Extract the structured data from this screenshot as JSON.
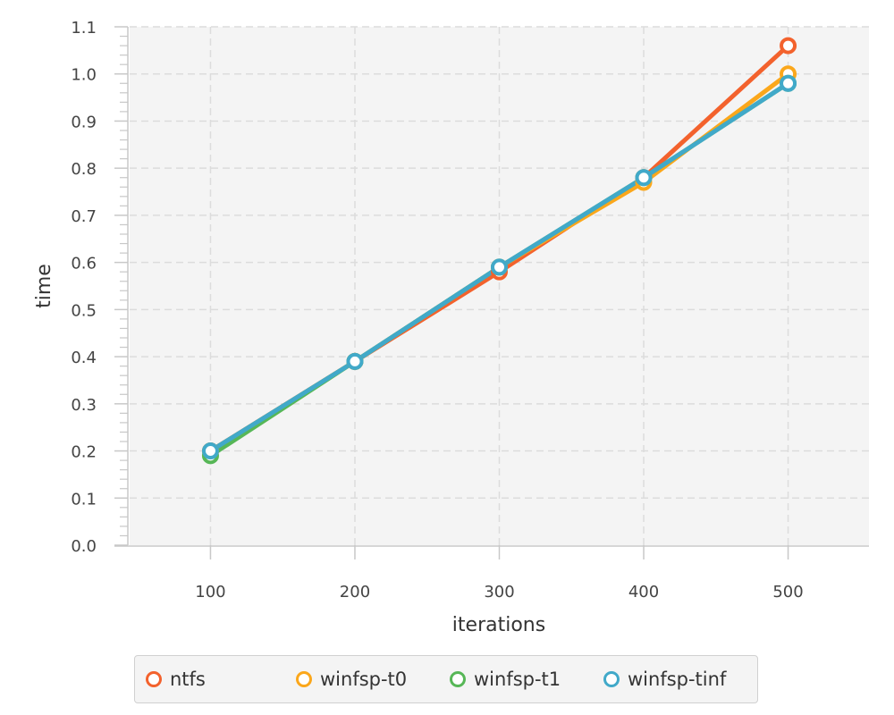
{
  "chart_data": {
    "type": "line",
    "title": "",
    "xlabel": "iterations",
    "ylabel": "time",
    "x": [
      100,
      200,
      300,
      400,
      500
    ],
    "xlim": [
      44,
      556
    ],
    "ylim": [
      0.0,
      1.1
    ],
    "xticks": [
      "100",
      "200",
      "300",
      "400",
      "500"
    ],
    "yticks": [
      "0.0",
      "0.1",
      "0.2",
      "0.3",
      "0.4",
      "0.5",
      "0.6",
      "0.7",
      "0.8",
      "0.9",
      "1.0",
      "1.1"
    ],
    "grid": true,
    "legend_position": "bottom",
    "series": [
      {
        "name": "ntfs",
        "color": "#f3622d",
        "values": [
          0.2,
          0.39,
          0.58,
          0.78,
          1.06
        ]
      },
      {
        "name": "winfsp-t0",
        "color": "#fba71b",
        "values": [
          0.2,
          0.39,
          0.59,
          0.77,
          1.0
        ]
      },
      {
        "name": "winfsp-t1",
        "color": "#57b757",
        "values": [
          0.19,
          0.39,
          0.59,
          0.78,
          0.98
        ]
      },
      {
        "name": "winfsp-tinf",
        "color": "#41a9c9",
        "values": [
          0.2,
          0.39,
          0.59,
          0.78,
          0.98
        ]
      }
    ]
  }
}
